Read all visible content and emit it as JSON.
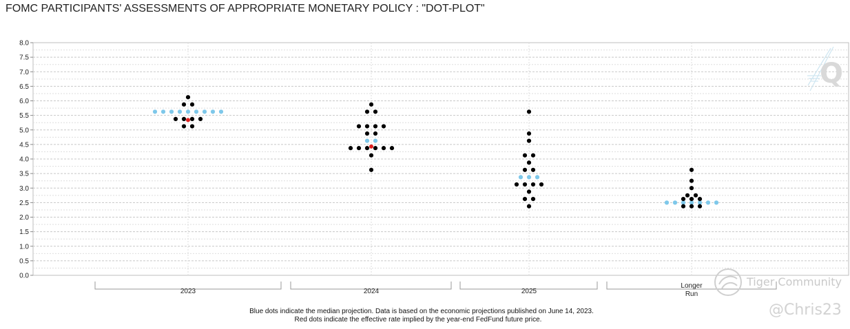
{
  "title": "FOMC PARTICIPANTS' ASSESSMENTS OF APPROPRIATE MONETARY POLICY : \"DOT-PLOT\"",
  "colors": {
    "participant_dot": "#000000",
    "median_dot": "#7ec8ea",
    "futures_dot": "#e02020",
    "grid_major": "#c8c8c8",
    "grid_minor": "#dedede",
    "watermark": "#d0d0d0"
  },
  "chart_data": {
    "type": "scatter",
    "y_ticks": [
      "0.0",
      "0.5",
      "1.0",
      "1.5",
      "2.0",
      "2.5",
      "3.0",
      "3.5",
      "4.0",
      "4.5",
      "5.0",
      "5.5",
      "6.0",
      "6.5",
      "7.0",
      "7.5",
      "8.0"
    ],
    "ylim": [
      0,
      8
    ],
    "grid": true,
    "categories": [
      "2023",
      "2024",
      "2025",
      "Longer Run"
    ],
    "participants": [
      {
        "category": "2023",
        "values": [
          6.125,
          5.875,
          5.875,
          5.375,
          5.375,
          5.375,
          5.375,
          5.125,
          5.125
        ]
      },
      {
        "category": "2024",
        "values": [
          5.875,
          5.625,
          5.625,
          5.125,
          5.125,
          5.125,
          5.125,
          4.875,
          4.875,
          4.375,
          4.375,
          4.375,
          4.375,
          4.375,
          4.375,
          4.125,
          3.625
        ]
      },
      {
        "category": "2025",
        "values": [
          5.625,
          4.875,
          4.625,
          4.125,
          4.125,
          3.875,
          3.625,
          3.625,
          3.125,
          3.125,
          3.125,
          3.125,
          2.875,
          2.625,
          2.625,
          2.375
        ]
      },
      {
        "category": "Longer Run",
        "values": [
          3.625,
          3.25,
          3.0,
          2.75,
          2.75,
          2.625,
          2.625,
          2.625,
          2.375,
          2.375,
          2.375
        ]
      }
    ],
    "median_projection": [
      {
        "category": "2023",
        "value": 5.625,
        "dot_count": 9
      },
      {
        "category": "2024",
        "value": 4.625,
        "dot_count": 2
      },
      {
        "category": "2025",
        "value": 3.375,
        "dot_count": 3
      },
      {
        "category": "Longer Run",
        "value": 2.5,
        "dot_count": 7
      }
    ],
    "futures_implied": [
      {
        "category": "2023",
        "value": 5.34
      },
      {
        "category": "2024",
        "value": 4.43
      }
    ]
  },
  "footnotes": [
    "Blue dots indicate the median projection. Data is based on the economic projections published on June 14, 2023.",
    "Red dots indicate the effective rate implied by the year-end FedFund future price."
  ],
  "watermarks": {
    "logo_letter": "Q",
    "community": "Tiger Community",
    "handle": "@Chris23"
  }
}
